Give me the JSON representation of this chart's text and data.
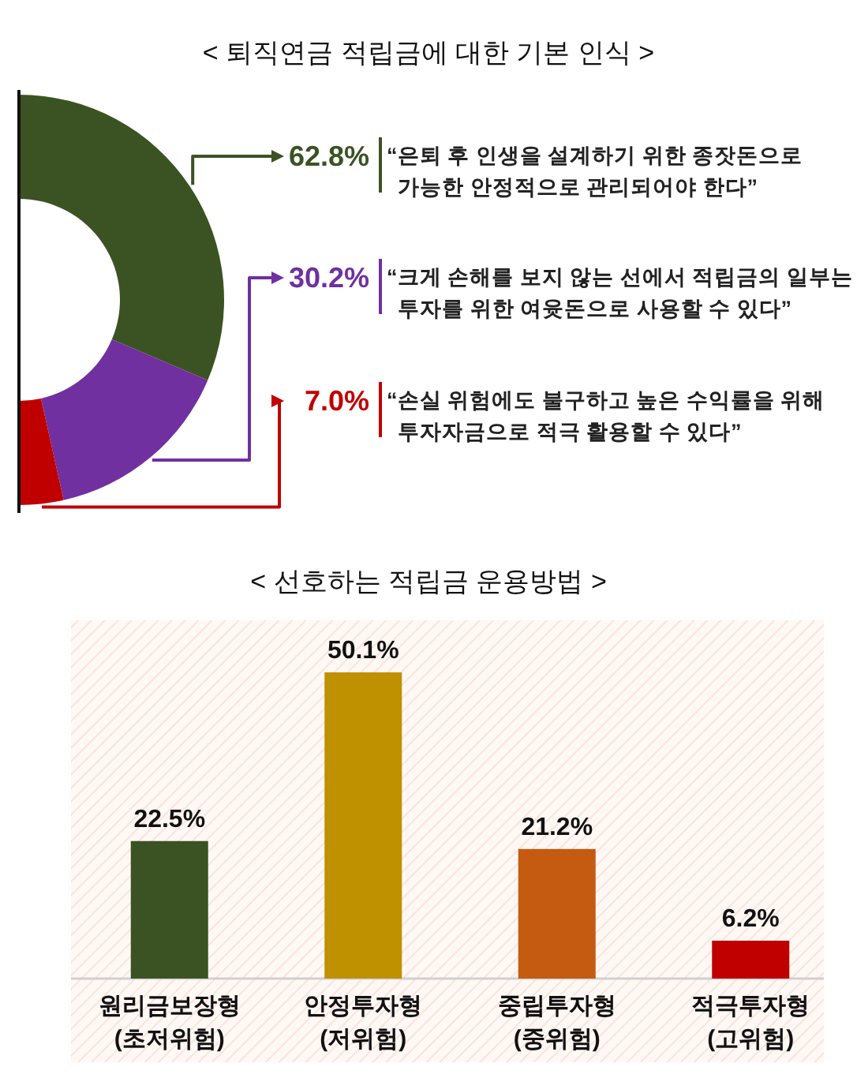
{
  "chart_data": [
    {
      "type": "donut",
      "title": "< 퇴직연금 적립금에 대한 기본 인식 >",
      "categories": [
        "“은퇴 후 인생을 설계하기 위한 종잣돈으로 가능한 안정적으로 관리되어야 한다”",
        "“크게 손해를 보지 않는 선에서 적립금의 일부는 투자를 위한 여윳돈으로 사용할 수 있다”",
        "“손실 위험에도 불구하고 높은 수익률을 위해 투자자금으로 적극 활용할 수 있다”"
      ],
      "values": [
        62.8,
        30.2,
        7.0
      ],
      "value_labels": [
        "62.8%",
        "30.2%",
        "7.0%"
      ],
      "colors": [
        "#3b5323",
        "#7030a0",
        "#c00000"
      ]
    },
    {
      "type": "bar",
      "title": "< 선호하는 적립금 운용방법 >",
      "categories": [
        "원리금보장형 (초저위험)",
        "안정투자형 (저위험)",
        "중립투자형 (중위험)",
        "적극투자형 (고위험)"
      ],
      "values": [
        22.5,
        50.1,
        21.2,
        6.2
      ],
      "value_labels": [
        "22.5%",
        "50.1%",
        "21.2%",
        "6.2%"
      ],
      "colors": [
        "#3b5323",
        "#bf9000",
        "#c55a11",
        "#c00000"
      ]
    }
  ]
}
